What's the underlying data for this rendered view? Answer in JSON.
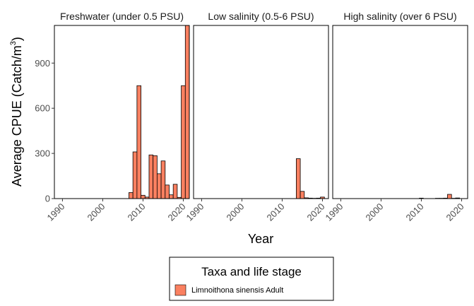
{
  "chart_data": {
    "type": "bar",
    "ylabel": "Average CPUE (Catch/m",
    "ylabel_superscript": "3",
    "ylabel_close": ")",
    "xlabel": "Year",
    "xlim": [
      1988,
      2021.5
    ],
    "ylim": [
      0,
      1150
    ],
    "xticks": [
      1990,
      2000,
      2010,
      2020
    ],
    "yticks": [
      0,
      300,
      600,
      900
    ],
    "fill_color": "#FA8060",
    "bar_stroke": "#000000",
    "grid": false,
    "legend": {
      "title": "Taxa and life stage",
      "position": "bottom",
      "entries": [
        {
          "label": "Limnoithona sinensis Adult",
          "color": "#FA8060"
        }
      ]
    },
    "panels": [
      {
        "title": "Freshwater (under 0.5 PSU)",
        "x": [
          2007,
          2008,
          2009,
          2010,
          2011,
          2012,
          2013,
          2014,
          2015,
          2016,
          2017,
          2018,
          2019,
          2020,
          2021
        ],
        "values": [
          40,
          310,
          750,
          22,
          10,
          290,
          285,
          165,
          250,
          90,
          25,
          95,
          8,
          750,
          1150
        ]
      },
      {
        "title": "Low salinity (0.5-6 PSU)",
        "x": [
          2014,
          2015,
          2016,
          2017,
          2018,
          2019,
          2020
        ],
        "values": [
          265,
          48,
          5,
          3,
          2,
          3,
          10
        ]
      },
      {
        "title": "High salinity (over 6 PSU)",
        "x": [
          2010,
          2014,
          2015,
          2016,
          2017,
          2018,
          2019
        ],
        "values": [
          3,
          2,
          2,
          3,
          28,
          2,
          4
        ]
      }
    ]
  }
}
